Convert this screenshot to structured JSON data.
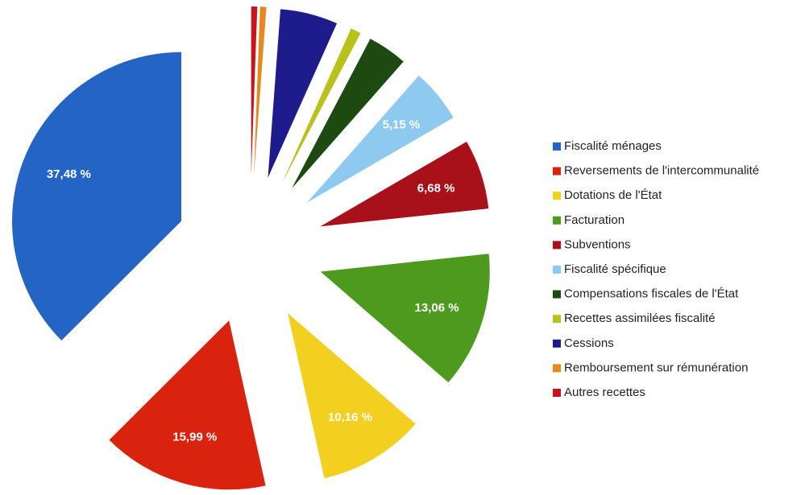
{
  "chart_data": {
    "type": "pie",
    "categories": [
      "Fiscalité ménages",
      "Reversements de l'intercommunalité",
      "Dotations de l'État",
      "Facturation",
      "Subventions",
      "Fiscalité spécifique",
      "Compensations fiscales de l'État",
      "Recettes assimilées fiscalité",
      "Cessions",
      "Remboursement sur rémunération",
      "Autres recettes"
    ],
    "values": [
      37.48,
      15.99,
      10.16,
      13.06,
      6.68,
      5.15,
      3.8,
      1.0,
      5.5,
      0.6,
      0.58
    ],
    "value_labels": [
      "37,48 %",
      "15,99 %",
      "10,16 %",
      "13,06 %",
      "6,68 %",
      "5,15 %",
      null,
      null,
      null,
      null,
      null
    ],
    "colors": [
      "#2364c4",
      "#d9230f",
      "#f3cf1f",
      "#4e9a1e",
      "#a8101a",
      "#8ec9f0",
      "#1c4a10",
      "#b8c21a",
      "#1e1b8c",
      "#e8871e",
      "#c8141e"
    ],
    "legend": "right"
  }
}
